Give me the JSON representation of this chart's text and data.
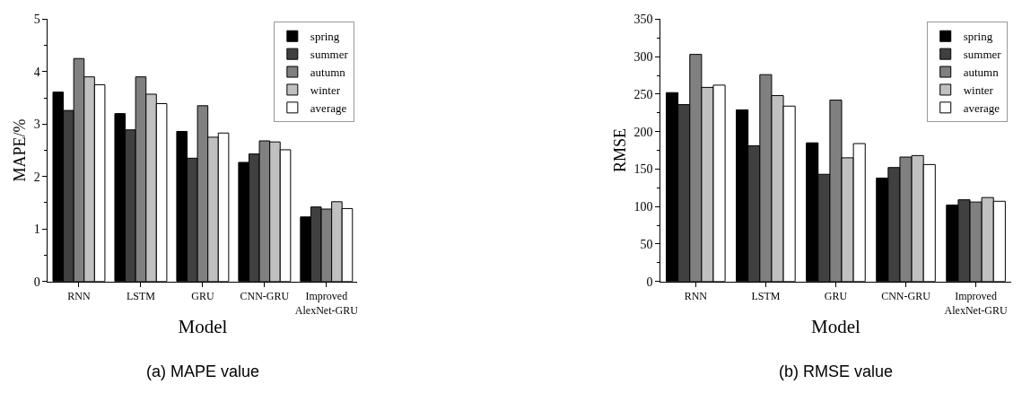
{
  "chart_data": [
    {
      "type": "bar",
      "xlabel": "Model",
      "ylabel": "MAPE/%",
      "categories": [
        "RNN",
        "LSTM",
        "GRU",
        "CNN-GRU",
        "Improved\nAlexNet-GRU"
      ],
      "series": [
        {
          "name": "spring",
          "color": "#000000",
          "values": [
            3.61,
            3.2,
            2.86,
            2.27,
            1.23
          ]
        },
        {
          "name": "summer",
          "color": "#404040",
          "values": [
            3.26,
            2.89,
            2.35,
            2.43,
            1.42
          ]
        },
        {
          "name": "autumn",
          "color": "#808080",
          "values": [
            4.25,
            3.9,
            3.35,
            2.68,
            1.38
          ]
        },
        {
          "name": "winter",
          "color": "#c0c0c0",
          "values": [
            3.9,
            3.57,
            2.75,
            2.66,
            1.52
          ]
        },
        {
          "name": "average",
          "color": "#ffffff",
          "values": [
            3.75,
            3.39,
            2.83,
            2.51,
            1.39
          ]
        }
      ],
      "ylim": [
        0,
        5
      ],
      "yticks": [
        0,
        1,
        2,
        3,
        4,
        5
      ],
      "legend": "top right",
      "annotations": [
        "(a) MAPE value"
      ]
    },
    {
      "type": "bar",
      "xlabel": "Model",
      "ylabel": "RMSE",
      "categories": [
        "RNN",
        "LSTM",
        "GRU",
        "CNN-GRU",
        "Improved\nAlexNet-GRU"
      ],
      "series": [
        {
          "name": "spring",
          "color": "#000000",
          "values": [
            252,
            229,
            185,
            138,
            102
          ]
        },
        {
          "name": "summer",
          "color": "#404040",
          "values": [
            236,
            181,
            143,
            152,
            109
          ]
        },
        {
          "name": "autumn",
          "color": "#808080",
          "values": [
            303,
            276,
            242,
            166,
            106
          ]
        },
        {
          "name": "winter",
          "color": "#c0c0c0",
          "values": [
            259,
            248,
            165,
            168,
            112
          ]
        },
        {
          "name": "average",
          "color": "#ffffff",
          "values": [
            262,
            234,
            184,
            156,
            107
          ]
        }
      ],
      "ylim": [
        0,
        350
      ],
      "yticks": [
        0,
        50,
        100,
        150,
        200,
        250,
        300,
        350
      ],
      "legend": "top right",
      "annotations": [
        "(b) RMSE value"
      ]
    }
  ]
}
